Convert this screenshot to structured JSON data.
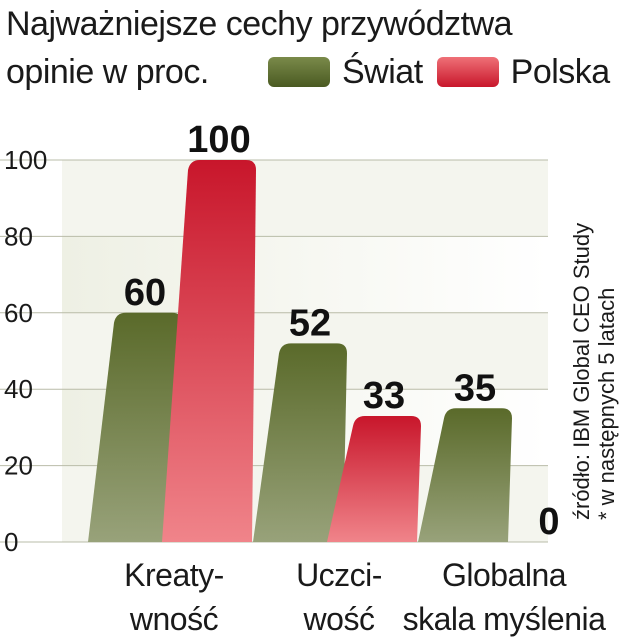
{
  "chart_data": {
    "type": "bar",
    "title": "Najważniejsze cechy przywództwa",
    "subtitle": "opinie w proc.",
    "categories": [
      [
        "Kreaty-",
        "wność"
      ],
      [
        "Uczci-",
        "wość"
      ],
      [
        "Globalna",
        "skala myślenia"
      ]
    ],
    "series": [
      {
        "name": "Świat",
        "values": [
          60,
          52,
          35
        ],
        "color": "#5b6b2e"
      },
      {
        "name": "Polska",
        "values": [
          100,
          33,
          0
        ],
        "color": "#d41f35"
      }
    ],
    "ylim": [
      0,
      100
    ],
    "yticks": [
      0,
      20,
      40,
      60,
      80,
      100
    ],
    "source": [
      "źródło: IBM Global CEO Study",
      "* w następnych 5 latach"
    ],
    "legend_position": "top-right"
  }
}
